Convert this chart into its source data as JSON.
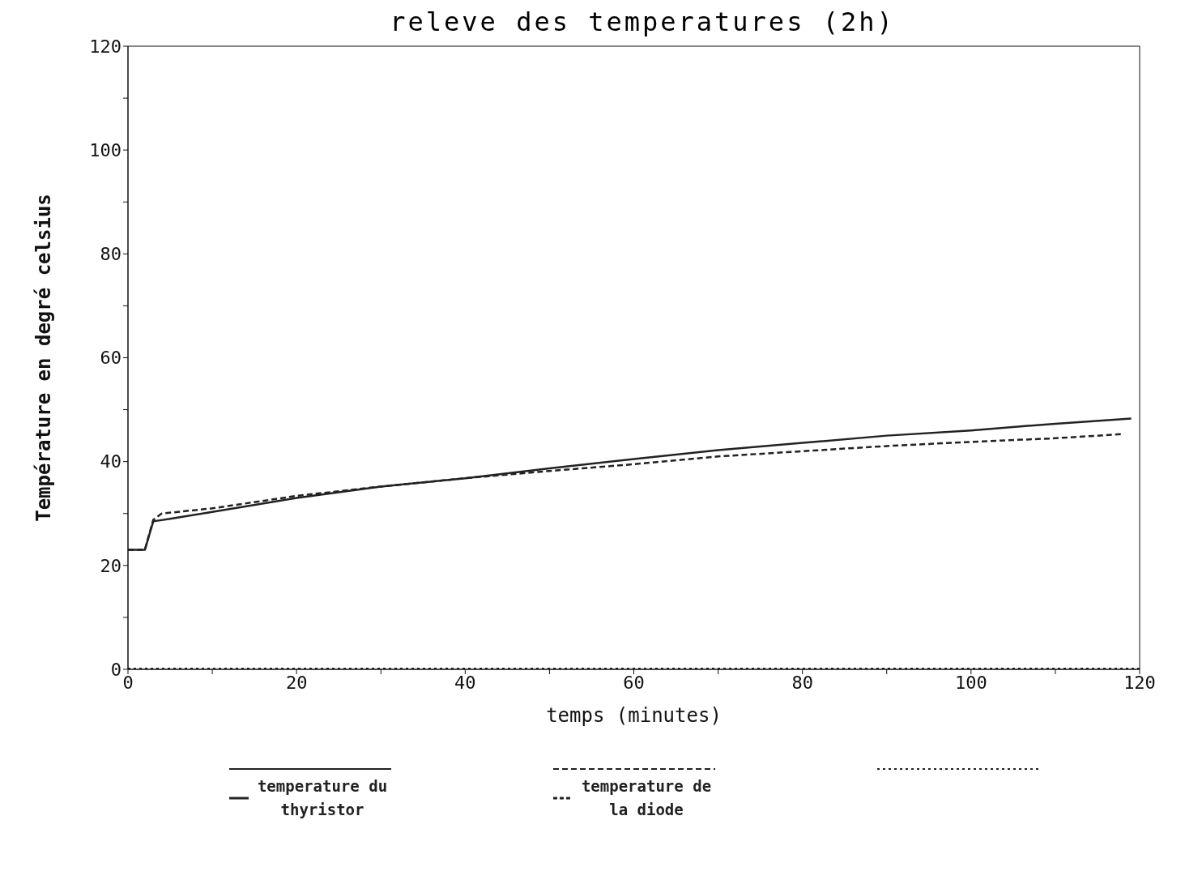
{
  "chart_data": {
    "type": "line",
    "title": "releve des temperatures (2h)",
    "xlabel": "temps (minutes)",
    "ylabel": "Température en degré celsius",
    "xlim": [
      0,
      120
    ],
    "ylim": [
      0,
      120
    ],
    "xticks": [
      0,
      {
        "value": 10,
        "label": null
      },
      20,
      {
        "value": 30,
        "label": null
      },
      40,
      {
        "value": 50,
        "label": null
      },
      60,
      {
        "value": 70,
        "label": null
      },
      80,
      {
        "value": 90,
        "label": null
      },
      100,
      {
        "value": 110,
        "label": null
      },
      120
    ],
    "yticks": [
      0,
      {
        "value": 10,
        "label": null
      },
      20,
      {
        "value": 30,
        "label": null
      },
      40,
      {
        "value": 50,
        "label": null
      },
      60,
      {
        "value": 70,
        "label": null
      },
      80,
      {
        "value": 90,
        "label": null
      },
      100,
      {
        "value": 110,
        "label": null
      },
      120
    ],
    "grid": false,
    "legend": "bottom",
    "marker": "none",
    "series": [
      {
        "name": "temperature du thyristor",
        "color": "#222222",
        "line_style": "solid",
        "x": [
          0,
          2,
          3,
          5,
          10,
          20,
          30,
          40,
          50,
          60,
          70,
          80,
          90,
          100,
          110,
          119
        ],
        "values": [
          23,
          23,
          28.5,
          29,
          30.3,
          33,
          35.2,
          36.8,
          38.7,
          40.5,
          42.2,
          43.6,
          45,
          46,
          47.3,
          48.3
        ]
      },
      {
        "name": "temperature de la diode",
        "color": "#222222",
        "line_style": "dashed",
        "x": [
          0,
          2,
          3,
          4,
          10,
          20,
          30,
          40,
          50,
          60,
          70,
          80,
          90,
          100,
          110,
          118
        ],
        "values": [
          23,
          23,
          28.8,
          30,
          31,
          33.4,
          35.2,
          36.8,
          38.2,
          39.5,
          41,
          42,
          43,
          43.8,
          44.5,
          45.3
        ]
      },
      {
        "color": "#222222",
        "line_style": "dotted",
        "x": [
          0,
          120
        ],
        "values": [
          0,
          0
        ]
      }
    ]
  }
}
